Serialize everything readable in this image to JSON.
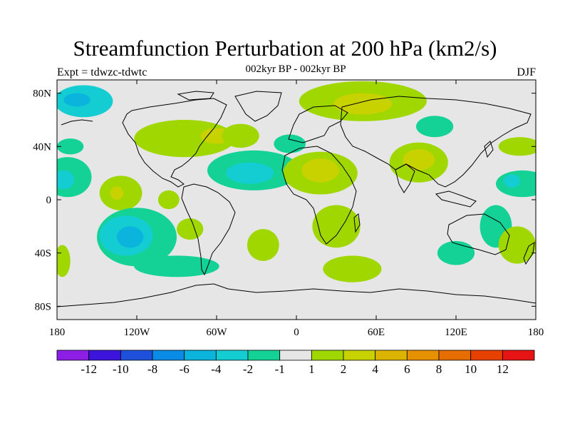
{
  "title": "Streamfunction Perturbation at 200 hPa (km2/s)",
  "subtitle": "002kyr BP - 002kyr BP",
  "expt_label": "Expt = tdwzc-tdwtc",
  "season": "DJF",
  "lat_ticks": [
    "80N",
    "40N",
    "0",
    "40S",
    "80S"
  ],
  "lon_ticks": [
    "180",
    "120W",
    "60W",
    "0",
    "60E",
    "120E",
    "180"
  ],
  "colorbar": {
    "labels": [
      "-12",
      "-10",
      "-8",
      "-6",
      "-4",
      "-2",
      "-1",
      "1",
      "2",
      "4",
      "6",
      "8",
      "10",
      "12"
    ],
    "colors": [
      "#8c1ee6",
      "#3c14dc",
      "#1e50dc",
      "#0a8ce6",
      "#0ab4dc",
      "#14cdd2",
      "#14d296",
      "#e6e6e6",
      "#a0d700",
      "#c8d200",
      "#dcb400",
      "#e69100",
      "#e66e00",
      "#e64100",
      "#e61414"
    ]
  },
  "map_data": {
    "background_color": "#e6e6e6",
    "lon_range": [
      -180,
      180
    ],
    "lat_range": [
      -90,
      90
    ],
    "anomalies": [
      {
        "lon": -160,
        "lat": 74,
        "rx": 22,
        "ry": 12,
        "level": -2
      },
      {
        "lon": -165,
        "lat": 75,
        "rx": 10,
        "ry": 5,
        "level": -4
      },
      {
        "lon": -84,
        "lat": 46,
        "rx": 38,
        "ry": 14,
        "level": 1
      },
      {
        "lon": -60,
        "lat": 48,
        "rx": 12,
        "ry": 6,
        "level": 2
      },
      {
        "lon": -170,
        "lat": 40,
        "rx": 10,
        "ry": 6,
        "level": -1
      },
      {
        "lon": -172,
        "lat": 17,
        "rx": 18,
        "ry": 15,
        "level": -1
      },
      {
        "lon": -175,
        "lat": 15,
        "rx": 8,
        "ry": 7,
        "level": -2
      },
      {
        "lon": -132,
        "lat": 5,
        "rx": 16,
        "ry": 13,
        "level": 1
      },
      {
        "lon": -135,
        "lat": 5,
        "rx": 5,
        "ry": 5,
        "level": 2
      },
      {
        "lon": -96,
        "lat": 0,
        "rx": 8,
        "ry": 7,
        "level": 1
      },
      {
        "lon": -120,
        "lat": -28,
        "rx": 30,
        "ry": 22,
        "level": -1
      },
      {
        "lon": -128,
        "lat": -27,
        "rx": 20,
        "ry": 15,
        "level": -2
      },
      {
        "lon": -125,
        "lat": -28,
        "rx": 10,
        "ry": 8,
        "level": -4
      },
      {
        "lon": -90,
        "lat": -50,
        "rx": 32,
        "ry": 8,
        "level": -1
      },
      {
        "lon": -176,
        "lat": -46,
        "rx": 6,
        "ry": 12,
        "level": 1
      },
      {
        "lon": -80,
        "lat": -22,
        "rx": 10,
        "ry": 8,
        "level": 1
      },
      {
        "lon": -32,
        "lat": 22,
        "rx": 35,
        "ry": 15,
        "level": -1
      },
      {
        "lon": -35,
        "lat": 20,
        "rx": 18,
        "ry": 8,
        "level": -2
      },
      {
        "lon": -5,
        "lat": 42,
        "rx": 12,
        "ry": 7,
        "level": -1
      },
      {
        "lon": -42,
        "lat": 48,
        "rx": 14,
        "ry": 9,
        "level": 1
      },
      {
        "lon": 18,
        "lat": 20,
        "rx": 28,
        "ry": 16,
        "level": 1
      },
      {
        "lon": 18,
        "lat": 22,
        "rx": 14,
        "ry": 9,
        "level": 2
      },
      {
        "lon": 50,
        "lat": 74,
        "rx": 48,
        "ry": 15,
        "level": 1
      },
      {
        "lon": 50,
        "lat": 72,
        "rx": 22,
        "ry": 8,
        "level": 2
      },
      {
        "lon": 104,
        "lat": 55,
        "rx": 14,
        "ry": 8,
        "level": -1
      },
      {
        "lon": 92,
        "lat": 28,
        "rx": 22,
        "ry": 15,
        "level": 1
      },
      {
        "lon": 92,
        "lat": 30,
        "rx": 12,
        "ry": 8,
        "level": 2
      },
      {
        "lon": 168,
        "lat": 40,
        "rx": 16,
        "ry": 7,
        "level": 1
      },
      {
        "lon": 170,
        "lat": 12,
        "rx": 20,
        "ry": 10,
        "level": -1
      },
      {
        "lon": 162,
        "lat": 14,
        "rx": 6,
        "ry": 5,
        "level": -2
      },
      {
        "lon": 30,
        "lat": -20,
        "rx": 18,
        "ry": 16,
        "level": 1
      },
      {
        "lon": 42,
        "lat": -52,
        "rx": 22,
        "ry": 10,
        "level": 1
      },
      {
        "lon": -25,
        "lat": -34,
        "rx": 12,
        "ry": 12,
        "level": 1
      },
      {
        "lon": 120,
        "lat": -40,
        "rx": 14,
        "ry": 9,
        "level": -1
      },
      {
        "lon": 150,
        "lat": -20,
        "rx": 12,
        "ry": 16,
        "level": -1
      },
      {
        "lon": 166,
        "lat": -34,
        "rx": 14,
        "ry": 14,
        "level": 1
      }
    ]
  }
}
